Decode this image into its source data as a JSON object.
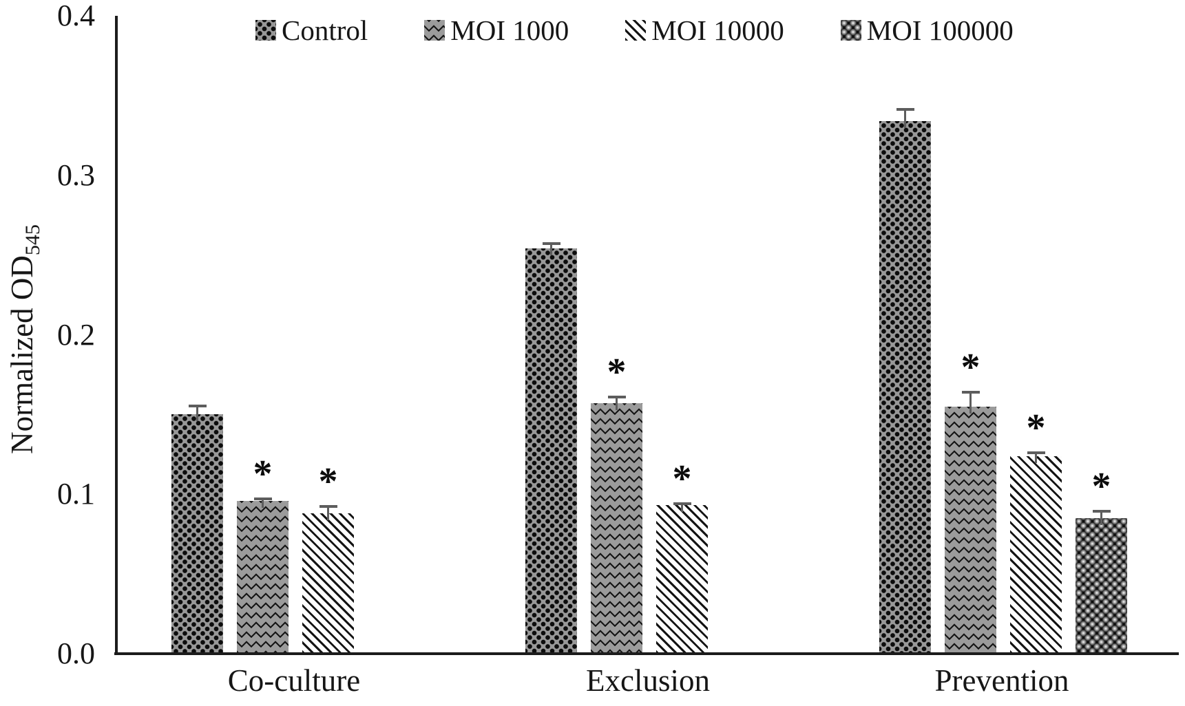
{
  "figure": {
    "background": "#ffffff",
    "ink": "#111111"
  },
  "chart_data": {
    "type": "bar",
    "title": "",
    "xlabel": "",
    "ylabel": "Normalized OD",
    "ylabel_subscript": "545",
    "ylim": [
      0.0,
      0.4
    ],
    "ytick_labels": [
      "0.0",
      "0.1",
      "0.2",
      "0.3",
      "0.4"
    ],
    "grid": false,
    "legend_position": "top",
    "significance_marker": "*",
    "categories": [
      "Co-culture",
      "Exclusion",
      "Prevention"
    ],
    "series": [
      {
        "name": "Control",
        "pattern": "black-dots-on-gray",
        "values": [
          0.15,
          0.254,
          0.334
        ],
        "errors": [
          0.006,
          0.004,
          0.008
        ],
        "significant": [
          false,
          false,
          false
        ]
      },
      {
        "name": "MOI 1000",
        "pattern": "zigzag-waves",
        "values": [
          0.096,
          0.157,
          0.155
        ],
        "errors": [
          0.002,
          0.005,
          0.01
        ],
        "significant": [
          true,
          true,
          true
        ]
      },
      {
        "name": "MOI 10000",
        "pattern": "diagonal-stripes",
        "values": [
          0.088,
          0.093,
          0.124
        ],
        "errors": [
          0.005,
          0.002,
          0.003
        ],
        "significant": [
          true,
          true,
          true
        ]
      },
      {
        "name": "MOI 100000",
        "pattern": "beads-on-black",
        "values": [
          null,
          null,
          0.085
        ],
        "errors": [
          null,
          null,
          0.005
        ],
        "significant": [
          false,
          false,
          true
        ]
      }
    ],
    "colors": {
      "bar_gray": "#999999",
      "ink": "#111111",
      "error_bar": "#5d5d5d",
      "stripe_background": "#ffffff",
      "beads_background": "#0d0d0d"
    }
  }
}
